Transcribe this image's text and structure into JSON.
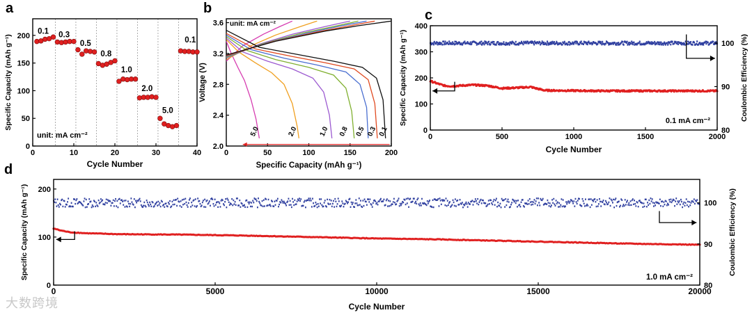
{
  "watermark": "大数跨境",
  "chart_data": [
    {
      "id": "a",
      "panel_label": "a",
      "type": "scatter",
      "xlabel": "Cycle Number",
      "ylabel": "Specific Capacity (mAh g⁻¹)",
      "xlim": [
        0,
        40
      ],
      "ylim": [
        0,
        230
      ],
      "xticks": [
        0,
        10,
        20,
        30,
        40
      ],
      "yticks": [
        0,
        50,
        100,
        150,
        200
      ],
      "unit_note": "unit: mA cm⁻²",
      "rate_labels": [
        {
          "text": "0.1",
          "x": 1.2,
          "y": 203
        },
        {
          "text": "0.3",
          "x": 6.3,
          "y": 197
        },
        {
          "text": "0.5",
          "x": 11.5,
          "y": 181
        },
        {
          "text": "0.8",
          "x": 16.5,
          "y": 162
        },
        {
          "text": "1.0",
          "x": 21.5,
          "y": 133
        },
        {
          "text": "2.0",
          "x": 26.5,
          "y": 99
        },
        {
          "text": "5.0",
          "x": 31.5,
          "y": 60
        },
        {
          "text": "0.1",
          "x": 37.0,
          "y": 187
        }
      ],
      "separators": [
        5.5,
        10.5,
        15.5,
        20.5,
        25.5,
        30.5,
        35.5
      ],
      "x": [
        1,
        2,
        3,
        4,
        5,
        6,
        7,
        8,
        9,
        10,
        11,
        12,
        13,
        14,
        15,
        16,
        17,
        18,
        19,
        20,
        21,
        22,
        23,
        24,
        25,
        26,
        27,
        28,
        29,
        30,
        31,
        32,
        33,
        34,
        35,
        36,
        37,
        38,
        39,
        40
      ],
      "y": [
        189,
        190,
        193,
        194,
        197,
        188,
        187,
        188,
        189,
        189,
        174,
        166,
        172,
        171,
        170,
        149,
        146,
        148,
        151,
        154,
        117,
        121,
        120,
        121,
        121,
        87,
        88,
        88,
        89,
        88,
        50,
        40,
        37,
        35,
        37,
        172,
        171,
        171,
        170,
        170
      ],
      "marker_color": "#e02020"
    },
    {
      "id": "b",
      "panel_label": "b",
      "type": "line",
      "xlabel": "Specific Capacity (mAh g⁻¹)",
      "ylabel": "Voltage (V)",
      "xlim": [
        0,
        200
      ],
      "ylim": [
        2.0,
        3.65
      ],
      "xticks": [
        0,
        50,
        100,
        150,
        200
      ],
      "yticks": [
        2.0,
        2.4,
        2.8,
        3.2,
        3.6
      ],
      "unit_note": "unit:  mA cm⁻²",
      "series": [
        {
          "name": "5.0",
          "color": "#d63bb0",
          "discharge": [
            [
              0,
              3.36
            ],
            [
              6,
              3.2
            ],
            [
              14,
              3.02
            ],
            [
              22,
              2.85
            ],
            [
              30,
              2.6
            ],
            [
              36,
              2.35
            ],
            [
              40,
              2.1
            ]
          ],
          "charge": [
            [
              0,
              3.1
            ],
            [
              20,
              3.3
            ],
            [
              45,
              3.45
            ],
            [
              65,
              3.55
            ],
            [
              80,
              3.62
            ]
          ],
          "label_pos": [
            34,
            2.12
          ]
        },
        {
          "name": "2.0",
          "color": "#f0a020",
          "discharge": [
            [
              0,
              3.38
            ],
            [
              15,
              3.22
            ],
            [
              35,
              3.08
            ],
            [
              55,
              2.95
            ],
            [
              70,
              2.8
            ],
            [
              80,
              2.55
            ],
            [
              86,
              2.25
            ],
            [
              88,
              2.1
            ]
          ],
          "charge": [
            [
              0,
              3.12
            ],
            [
              30,
              3.3
            ],
            [
              60,
              3.44
            ],
            [
              90,
              3.55
            ],
            [
              110,
              3.62
            ]
          ],
          "label_pos": [
            80,
            2.12
          ]
        },
        {
          "name": "1.0",
          "color": "#9b59d0",
          "discharge": [
            [
              0,
              3.4
            ],
            [
              20,
              3.22
            ],
            [
              50,
              3.1
            ],
            [
              80,
              3.0
            ],
            [
              105,
              2.88
            ],
            [
              118,
              2.7
            ],
            [
              125,
              2.4
            ],
            [
              128,
              2.1
            ]
          ],
          "charge": [
            [
              0,
              3.14
            ],
            [
              40,
              3.32
            ],
            [
              80,
              3.45
            ],
            [
              120,
              3.55
            ],
            [
              150,
              3.62
            ]
          ],
          "label_pos": [
            118,
            2.12
          ]
        },
        {
          "name": "0.8",
          "color": "#80b030",
          "discharge": [
            [
              0,
              3.42
            ],
            [
              25,
              3.24
            ],
            [
              60,
              3.12
            ],
            [
              100,
              3.02
            ],
            [
              130,
              2.92
            ],
            [
              145,
              2.75
            ],
            [
              152,
              2.45
            ],
            [
              155,
              2.1
            ]
          ],
          "charge": [
            [
              0,
              3.15
            ],
            [
              45,
              3.33
            ],
            [
              90,
              3.46
            ],
            [
              130,
              3.55
            ],
            [
              160,
              3.62
            ]
          ],
          "label_pos": [
            142,
            2.12
          ]
        },
        {
          "name": "0.5",
          "color": "#4a6fd0",
          "discharge": [
            [
              0,
              3.44
            ],
            [
              30,
              3.25
            ],
            [
              70,
              3.14
            ],
            [
              110,
              3.05
            ],
            [
              145,
              2.96
            ],
            [
              162,
              2.8
            ],
            [
              170,
              2.5
            ],
            [
              172,
              2.1
            ]
          ],
          "charge": [
            [
              0,
              3.16
            ],
            [
              50,
              3.34
            ],
            [
              100,
              3.47
            ],
            [
              140,
              3.56
            ],
            [
              170,
              3.62
            ]
          ],
          "label_pos": [
            162,
            2.12
          ]
        },
        {
          "name": "0.3",
          "color": "#e04a20",
          "discharge": [
            [
              0,
              3.46
            ],
            [
              35,
              3.26
            ],
            [
              80,
              3.16
            ],
            [
              120,
              3.08
            ],
            [
              155,
              3.0
            ],
            [
              172,
              2.86
            ],
            [
              180,
              2.55
            ],
            [
              183,
              2.1
            ]
          ],
          "charge": [
            [
              0,
              3.17
            ],
            [
              55,
              3.35
            ],
            [
              110,
              3.48
            ],
            [
              150,
              3.56
            ],
            [
              180,
              3.62
            ]
          ],
          "label_pos": [
            176,
            2.12
          ]
        },
        {
          "name": "0.1",
          "color": "#101010",
          "discharge": [
            [
              0,
              3.5
            ],
            [
              40,
              3.28
            ],
            [
              90,
              3.18
            ],
            [
              130,
              3.1
            ],
            [
              165,
              3.02
            ],
            [
              182,
              2.88
            ],
            [
              190,
              2.6
            ],
            [
              193,
              2.1
            ]
          ],
          "charge": [
            [
              0,
              3.18
            ],
            [
              60,
              3.36
            ],
            [
              120,
              3.49
            ],
            [
              160,
              3.56
            ],
            [
              200,
              3.62
            ]
          ],
          "label_pos": [
            190,
            2.12
          ]
        }
      ]
    },
    {
      "id": "c",
      "panel_label": "c",
      "type": "scatter",
      "xlabel": "Cycle Number",
      "ylabel": "Specific Capacity (mAh g⁻¹)",
      "y2label": "Coulombic Efficiency (%)",
      "xlim": [
        0,
        2000
      ],
      "ylim": [
        0,
        400
      ],
      "y2lim": [
        80,
        104
      ],
      "xticks": [
        0,
        500,
        1000,
        1500,
        2000
      ],
      "yticks": [
        0,
        100,
        200,
        300,
        400
      ],
      "y2ticks": [
        80,
        90,
        100
      ],
      "rate_note": "0.1 mA cm⁻²",
      "series": [
        {
          "name": "capacity",
          "color": "#e02020",
          "points": [
            [
              0,
              188
            ],
            [
              50,
              178
            ],
            [
              100,
              170
            ],
            [
              150,
              168
            ],
            [
              200,
              170
            ],
            [
              300,
              173
            ],
            [
              400,
              170
            ],
            [
              500,
              160
            ],
            [
              600,
              162
            ],
            [
              700,
              165
            ],
            [
              750,
              158
            ],
            [
              800,
              152
            ],
            [
              1000,
              151
            ],
            [
              1200,
              150
            ],
            [
              1400,
              150
            ],
            [
              1600,
              150
            ],
            [
              1800,
              150
            ],
            [
              2000,
              150
            ]
          ]
        },
        {
          "name": "coulombic efficiency",
          "color": "#3040a0",
          "points": [
            [
              0,
              100
            ],
            [
              500,
              100
            ],
            [
              1000,
              100
            ],
            [
              1500,
              100
            ],
            [
              2000,
              100
            ]
          ]
        }
      ]
    },
    {
      "id": "d",
      "panel_label": "d",
      "type": "scatter",
      "xlabel": "Cycle Number",
      "ylabel": "Specific Capacity (mAh g⁻¹)",
      "y2label": "Coulombic Efficiency (%)",
      "xlim": [
        0,
        20000
      ],
      "ylim": [
        0,
        220
      ],
      "y2lim": [
        80,
        105.7
      ],
      "xticks": [
        0,
        5000,
        10000,
        15000,
        20000
      ],
      "xticklabels": [
        "0",
        "5000",
        "10000",
        "15000",
        "20000"
      ],
      "yticks": [
        0,
        100,
        200
      ],
      "y2ticks": [
        80,
        90,
        100
      ],
      "rate_note": "1.0  mA cm⁻²",
      "series": [
        {
          "name": "capacity",
          "color": "#e02020",
          "points": [
            [
              0,
              118
            ],
            [
              200,
              114
            ],
            [
              500,
              110
            ],
            [
              1000,
              108
            ],
            [
              2000,
              106
            ],
            [
              4000,
              105
            ],
            [
              6000,
              103
            ],
            [
              8000,
              100
            ],
            [
              10000,
              97
            ],
            [
              12000,
              95
            ],
            [
              14000,
              92
            ],
            [
              16000,
              89
            ],
            [
              18000,
              86
            ],
            [
              20000,
              84
            ]
          ]
        },
        {
          "name": "coulombic efficiency",
          "color": "#3040a0",
          "points": [
            [
              0,
              100
            ],
            [
              5000,
              100
            ],
            [
              10000,
              100
            ],
            [
              15000,
              100
            ],
            [
              20000,
              100
            ]
          ]
        }
      ]
    }
  ]
}
